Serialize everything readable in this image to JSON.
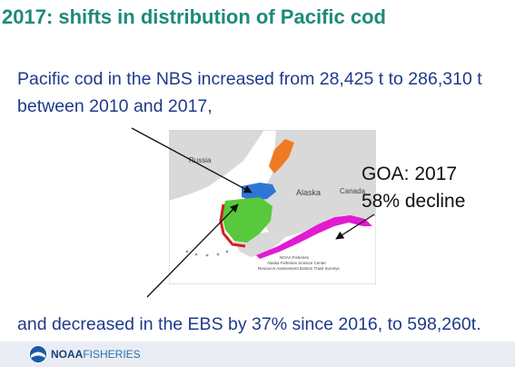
{
  "slide": {
    "title": "2017: shifts in distribution of Pacific cod",
    "line1": "Pacific cod in the NBS increased from 28,425 t to 286,310 t",
    "line2": "between 2010 and 2017,",
    "goa_label": "GOA: 2017",
    "goa_value": "58% decline",
    "line3": "and decreased in the EBS by 37% since 2016, to 598,260t."
  },
  "map": {
    "russia": "Russia",
    "alaska": "Alaska",
    "canada": "Canada",
    "footer_1": "NOAA Fisheries",
    "footer_2": "Alaska Fisheries Science Center",
    "footer_3": "Resource Assessment Bottom Trawl Surveys"
  },
  "footer": {
    "brand_bold": "NOAA",
    "brand_light": "FISHERIES"
  },
  "colors": {
    "title": "#1d8a7a",
    "text": "#1f3a8a",
    "nbs": "#2f76d6",
    "ebs": "#57c93a",
    "goa": "#e21bd1",
    "arctic": "#f07a21"
  }
}
